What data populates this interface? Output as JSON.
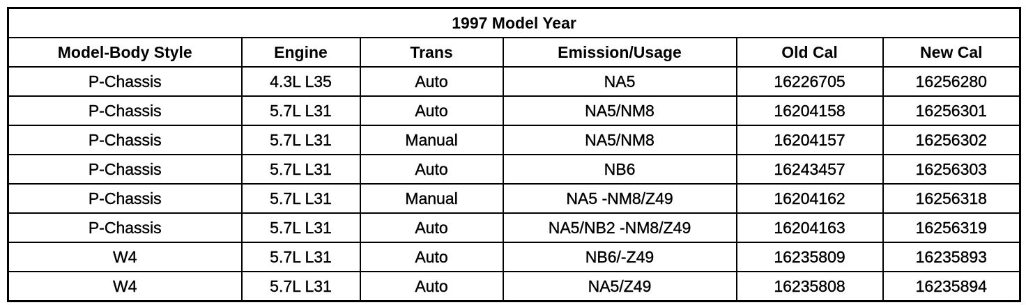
{
  "table": {
    "title": "1997 Model Year",
    "headers": [
      "Model-Body Style",
      "Engine",
      "Trans",
      "Emission/Usage",
      "Old Cal",
      "New Cal"
    ],
    "rows": [
      [
        "P-Chassis",
        "4.3L L35",
        "Auto",
        "NA5",
        "16226705",
        "16256280"
      ],
      [
        "P-Chassis",
        "5.7L L31",
        "Auto",
        "NA5/NM8",
        "16204158",
        "16256301"
      ],
      [
        "P-Chassis",
        "5.7L L31",
        "Manual",
        "NA5/NM8",
        "16204157",
        "16256302"
      ],
      [
        "P-Chassis",
        "5.7L L31",
        "Auto",
        "NB6",
        "16243457",
        "16256303"
      ],
      [
        "P-Chassis",
        "5.7L L31",
        "Manual",
        "NA5 -NM8/Z49",
        "16204162",
        "16256318"
      ],
      [
        "P-Chassis",
        "5.7L L31",
        "Auto",
        "NA5/NB2 -NM8/Z49",
        "16204163",
        "16256319"
      ],
      [
        "W4",
        "5.7L L31",
        "Auto",
        "NB6/-Z49",
        "16235809",
        "16235893"
      ],
      [
        "W4",
        "5.7L L31",
        "Auto",
        "NA5/Z49",
        "16235808",
        "16235894"
      ]
    ]
  }
}
